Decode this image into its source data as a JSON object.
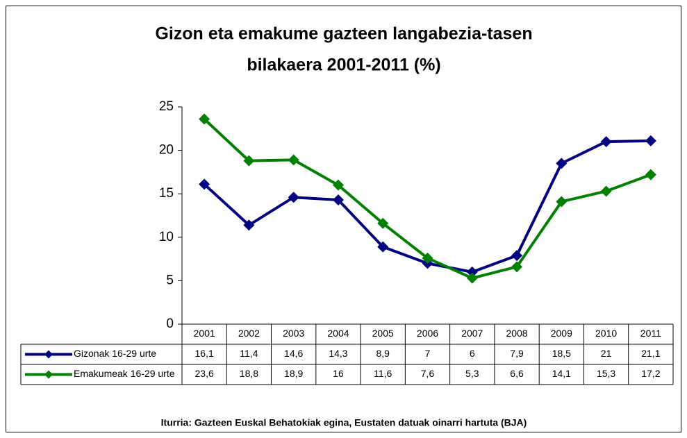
{
  "chart_data": {
    "type": "line",
    "title": [
      "Gizon eta emakume gazteen langabezia-tasen",
      "bilakaera 2001-2011 (%)"
    ],
    "categories": [
      "2001",
      "2002",
      "2003",
      "2004",
      "2005",
      "2006",
      "2007",
      "2008",
      "2009",
      "2010",
      "2011"
    ],
    "series": [
      {
        "name": "Gizonak 16-29 urte",
        "color": "#000080",
        "values": [
          16.1,
          11.4,
          14.6,
          14.3,
          8.9,
          7,
          6,
          7.9,
          18.5,
          21,
          21.1
        ],
        "value_labels": [
          "16,1",
          "11,4",
          "14,6",
          "14,3",
          "8,9",
          "7",
          "6",
          "7,9",
          "18,5",
          "21",
          "21,1"
        ]
      },
      {
        "name": "Emakumeak 16-29 urte",
        "color": "#008000",
        "values": [
          23.6,
          18.8,
          18.9,
          16,
          11.6,
          7.6,
          5.3,
          6.6,
          14.1,
          15.3,
          17.2
        ],
        "value_labels": [
          "23,6",
          "18,8",
          "18,9",
          "16",
          "11,6",
          "7,6",
          "5,3",
          "6,6",
          "14,1",
          "15,3",
          "17,2"
        ]
      }
    ],
    "ylim": [
      0,
      25
    ],
    "yticks": [
      0,
      5,
      10,
      15,
      20,
      25
    ],
    "grid": false,
    "source": "Iturria: Gazteen Euskal Behatokiak egina, Eustaten datuak oinarri hartuta (BJA)"
  }
}
